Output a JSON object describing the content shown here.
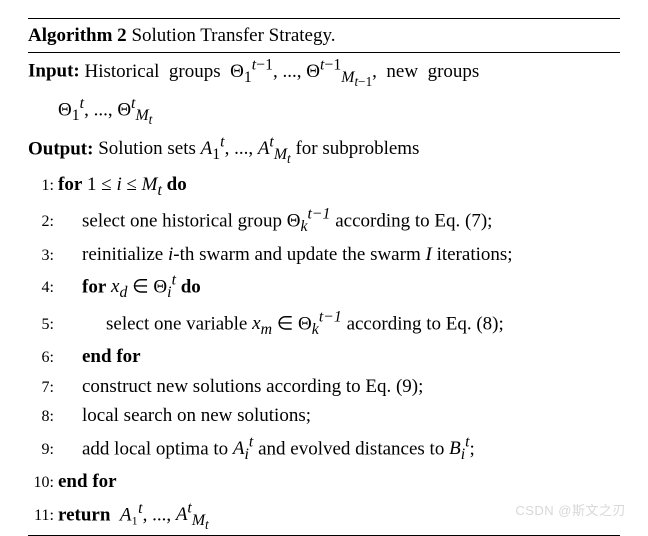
{
  "algorithm": {
    "label": "Algorithm 2",
    "title": "Solution Transfer Strategy.",
    "input_label": "Input:",
    "input_text_1": "Historical groups ",
    "input_math_1": "Θ₁ᵗ⁻¹, ..., Θ",
    "input_math_1b": "ᵗ⁻¹",
    "input_math_1sub": "M",
    "input_math_1subsub": "t−1",
    "input_text_2": ", new groups",
    "input_line2_a": "Θ₁ᵗ, ..., Θ",
    "input_line2_b": "ᵗ",
    "input_line2_sub": "M",
    "input_line2_subsub": "t",
    "output_label": "Output:",
    "output_text_1": "Solution sets ",
    "output_math": "A₁ᵗ, ..., A",
    "output_math_sup": "ᵗ",
    "output_math_sub": "M",
    "output_math_subsub": "t",
    "output_text_2": " for subproblems",
    "steps": [
      {
        "n": "1:",
        "indent": 0,
        "html": "<span class=\"kw\">for</span> 1 ≤ <span class=\"it\">i</span> ≤ <span class=\"it\">M<sub>t</sub></span> <span class=\"kw\">do</span>"
      },
      {
        "n": "2:",
        "indent": 1,
        "html": "select one historical group Θ<span class=\"it\"><sub>k</sub><sup>t−1</sup></span> according to Eq. (7);"
      },
      {
        "n": "3:",
        "indent": 1,
        "html": "reinitialize <span class=\"it\">i</span>-th swarm and update the swarm <span class=\"it\">I</span> iterations;"
      },
      {
        "n": "4:",
        "indent": 1,
        "html": "<span class=\"kw\">for</span> <span class=\"it\">x<sub>d</sub></span> ∈ Θ<span class=\"it\"><sub>i</sub><sup>t</sup></span> <span class=\"kw\">do</span>"
      },
      {
        "n": "5:",
        "indent": 2,
        "html": "select one variable <span class=\"it\">x<sub>m</sub></span> ∈ Θ<span class=\"it\"><sub>k</sub><sup>t−1</sup></span> according to Eq. (8);"
      },
      {
        "n": "6:",
        "indent": 1,
        "html": "<span class=\"kw\">end for</span>"
      },
      {
        "n": "7:",
        "indent": 1,
        "html": "construct new solutions according to Eq. (9);"
      },
      {
        "n": "8:",
        "indent": 1,
        "html": "local search on new solutions;"
      },
      {
        "n": "9:",
        "indent": 1,
        "html": "add local optima to <span class=\"it\">A<sub>i</sub><sup>t</sup></span> and evolved distances to <span class=\"it\">B<sub>i</sub><sup>t</sup></span>;"
      },
      {
        "n": "10:",
        "indent": 0,
        "html": "<span class=\"kw\">end for</span>"
      },
      {
        "n": "11:",
        "indent": 0,
        "html": "<span class=\"kw\">return</span> &nbsp;<span class=\"it\">A</span>₁<sup><span class=\"it\">t</span></sup>, ..., <span class=\"it\">A<sup>t</sup><sub>M<sub>t</sub></sub></span>"
      }
    ]
  },
  "watermark": "CSDN @斯文之刃"
}
